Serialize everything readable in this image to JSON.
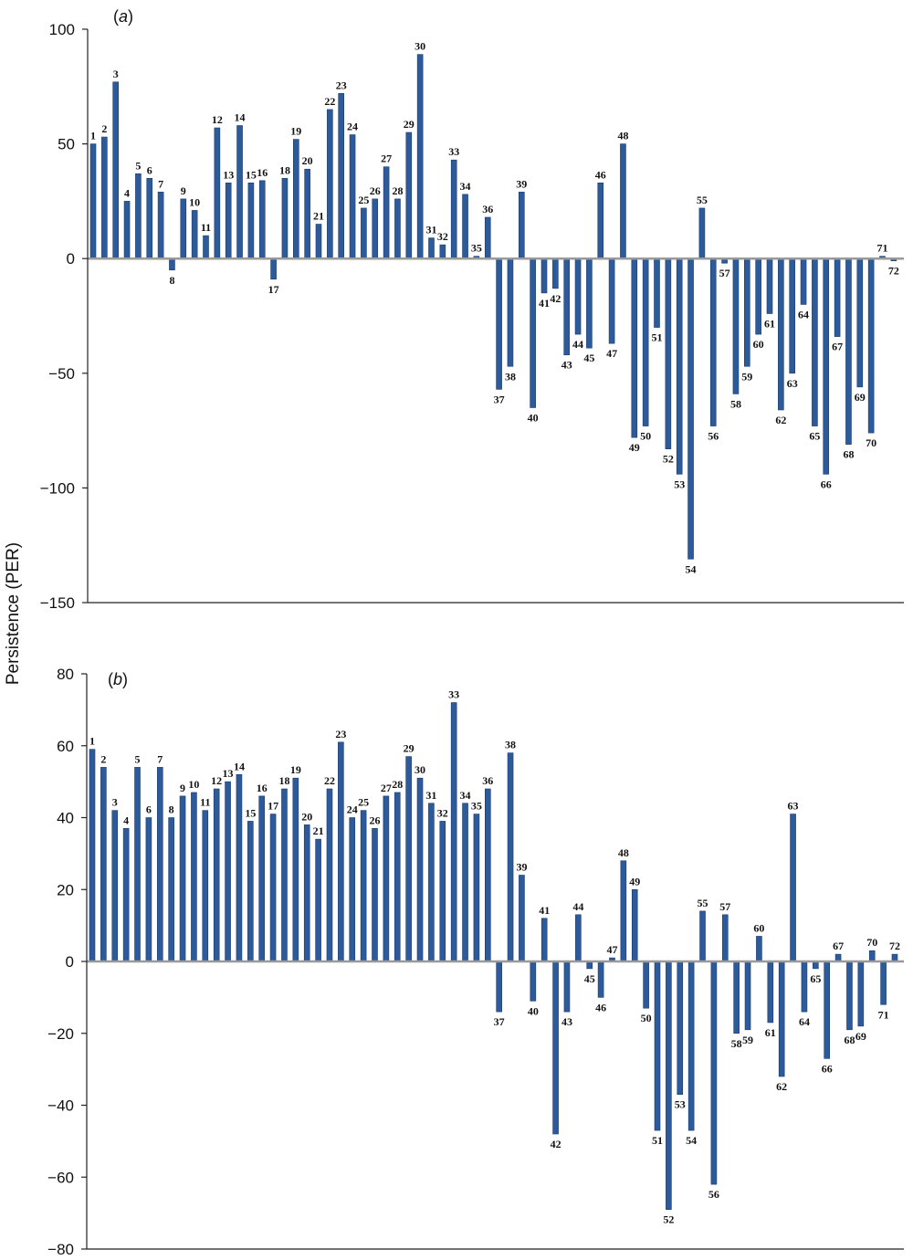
{
  "figure": {
    "ylabel": "Persistence (PER)",
    "bar_color": "#2D5A9B",
    "bar_edge_color": "#1B3C6E"
  },
  "chart_data": [
    {
      "type": "bar",
      "panel_label": "(a)",
      "panel_letter": "a",
      "ylim": [
        -150,
        100
      ],
      "yticks": [
        100,
        50,
        0,
        -50,
        -100,
        -150
      ],
      "ytick_labels": [
        "100",
        "50",
        "0",
        "−50",
        "−100",
        "−150"
      ],
      "categories": [
        "1",
        "2",
        "3",
        "4",
        "5",
        "6",
        "7",
        "8",
        "9",
        "10",
        "11",
        "12",
        "13",
        "14",
        "15",
        "16",
        "17",
        "18",
        "19",
        "20",
        "21",
        "22",
        "23",
        "24",
        "25",
        "26",
        "27",
        "28",
        "29",
        "30",
        "31",
        "32",
        "33",
        "34",
        "35",
        "36",
        "37",
        "38",
        "39",
        "40",
        "41",
        "42",
        "43",
        "44",
        "45",
        "46",
        "47",
        "48",
        "49",
        "50",
        "51",
        "52",
        "53",
        "54",
        "55",
        "56",
        "57",
        "58",
        "59",
        "60",
        "61",
        "62",
        "63",
        "64",
        "65",
        "66",
        "67",
        "68",
        "69",
        "70",
        "71",
        "72"
      ],
      "values": [
        50,
        53,
        77,
        25,
        37,
        35,
        29,
        -5,
        26,
        21,
        10,
        57,
        33,
        58,
        33,
        34,
        -9,
        35,
        52,
        39,
        15,
        65,
        72,
        54,
        22,
        26,
        40,
        26,
        55,
        89,
        9,
        6,
        43,
        28,
        1,
        18,
        -57,
        -47,
        29,
        -65,
        -15,
        -13,
        -42,
        -33,
        -39,
        33,
        -37,
        50,
        -78,
        -73,
        -30,
        -83,
        -94,
        -131,
        22,
        -73,
        -2,
        -59,
        -47,
        -33,
        -24,
        -66,
        -50,
        -20,
        -73,
        -94,
        -34,
        -81,
        -56,
        -76,
        1,
        -1
      ],
      "grid": false,
      "legend": "none"
    },
    {
      "type": "bar",
      "panel_label": "(b)",
      "panel_letter": "b",
      "ylim": [
        -80,
        80
      ],
      "yticks": [
        80,
        60,
        40,
        20,
        0,
        -20,
        -40,
        -60,
        -80
      ],
      "ytick_labels": [
        "80",
        "60",
        "40",
        "20",
        "0",
        "−20",
        "−40",
        "−60",
        "−80"
      ],
      "categories": [
        "1",
        "2",
        "3",
        "4",
        "5",
        "6",
        "7",
        "8",
        "9",
        "10",
        "11",
        "12",
        "13",
        "14",
        "15",
        "16",
        "17",
        "18",
        "19",
        "20",
        "21",
        "22",
        "23",
        "24",
        "25",
        "26",
        "27",
        "28",
        "29",
        "30",
        "31",
        "32",
        "33",
        "34",
        "35",
        "36",
        "37",
        "38",
        "39",
        "40",
        "41",
        "42",
        "43",
        "44",
        "45",
        "46",
        "47",
        "48",
        "49",
        "50",
        "51",
        "52",
        "53",
        "54",
        "55",
        "56",
        "57",
        "58",
        "59",
        "60",
        "61",
        "62",
        "63",
        "64",
        "65",
        "66",
        "67",
        "68",
        "69",
        "70",
        "71",
        "72"
      ],
      "values": [
        59,
        54,
        42,
        37,
        54,
        40,
        54,
        40,
        46,
        47,
        42,
        48,
        50,
        52,
        39,
        46,
        41,
        48,
        51,
        38,
        34,
        48,
        61,
        40,
        42,
        37,
        46,
        47,
        57,
        51,
        44,
        39,
        72,
        44,
        41,
        48,
        -14,
        58,
        24,
        -11,
        12,
        -48,
        -14,
        13,
        -2,
        -10,
        1,
        28,
        20,
        -13,
        -47,
        -69,
        -37,
        -47,
        14,
        -62,
        13,
        -20,
        -19,
        7,
        -17,
        -32,
        41,
        -14,
        -2,
        -27,
        2,
        -19,
        -18,
        3,
        -12,
        2
      ],
      "grid": false,
      "legend": "none"
    }
  ]
}
